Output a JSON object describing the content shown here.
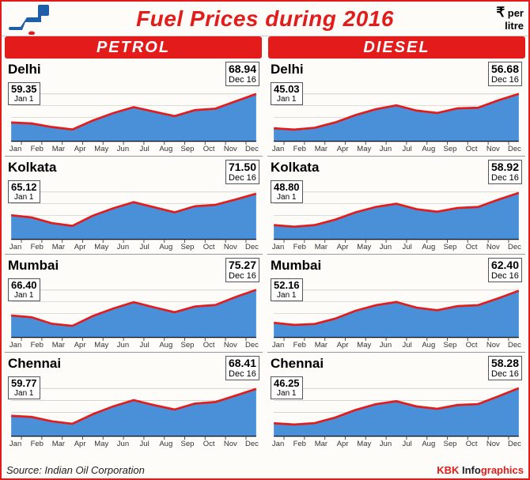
{
  "title": "Fuel Prices during 2016",
  "unit_symbol": "₹",
  "unit_text": "per litre",
  "source": "Source: Indian Oil Corporation",
  "brand_a": "KBK",
  "brand_b": " Info",
  "brand_c": "graphics",
  "columns": [
    {
      "label": "PETROL"
    },
    {
      "label": "DIESEL"
    }
  ],
  "months": [
    "Jan",
    "Feb",
    "Mar",
    "Apr",
    "May",
    "Jun",
    "Jul",
    "Aug",
    "Sep",
    "Oct",
    "Nov",
    "Dec"
  ],
  "colors": {
    "accent": "#e31b1b",
    "fill": "#4a90d9",
    "line": "#e31b1b",
    "grid": "#bbb",
    "bg": "#fdfcf9"
  },
  "chart_style": {
    "line_width": 2.5,
    "ymin_pad": 4,
    "ymax_pad": 4
  },
  "start_date": "Jan 1",
  "end_date": "Dec 16",
  "charts": [
    [
      {
        "city": "Delhi",
        "start": 59.35,
        "end": 68.94,
        "series": [
          59.35,
          59.0,
          57.8,
          57.0,
          60.0,
          62.5,
          64.5,
          63.0,
          61.5,
          63.5,
          64.0,
          66.5,
          68.94
        ]
      },
      {
        "city": "Kolkata",
        "start": 65.12,
        "end": 71.5,
        "series": [
          65.12,
          64.5,
          62.8,
          62.0,
          65.0,
          67.2,
          69.0,
          67.5,
          66.0,
          67.8,
          68.2,
          69.8,
          71.5
        ]
      },
      {
        "city": "Mumbai",
        "start": 66.4,
        "end": 75.27,
        "series": [
          66.4,
          65.8,
          63.5,
          62.8,
          66.2,
          68.8,
          71.0,
          69.2,
          67.5,
          69.5,
          70.0,
          72.8,
          75.27
        ]
      },
      {
        "city": "Chennai",
        "start": 59.77,
        "end": 68.41,
        "series": [
          59.77,
          59.4,
          58.0,
          57.2,
          60.3,
          62.8,
          64.8,
          63.2,
          61.8,
          63.7,
          64.2,
          66.3,
          68.41
        ]
      }
    ],
    [
      {
        "city": "Delhi",
        "start": 45.03,
        "end": 56.68,
        "series": [
          45.03,
          44.6,
          45.2,
          47.0,
          49.5,
          51.5,
          52.8,
          51.0,
          50.2,
          51.8,
          52.0,
          54.5,
          56.68
        ]
      },
      {
        "city": "Kolkata",
        "start": 48.8,
        "end": 58.92,
        "series": [
          48.8,
          48.3,
          48.8,
          50.5,
          52.8,
          54.5,
          55.5,
          53.8,
          53.0,
          54.2,
          54.5,
          56.8,
          58.92
        ]
      },
      {
        "city": "Mumbai",
        "start": 52.16,
        "end": 62.4,
        "series": [
          52.16,
          51.5,
          51.8,
          53.5,
          56.0,
          57.8,
          58.8,
          57.0,
          56.2,
          57.5,
          57.8,
          60.0,
          62.4
        ]
      },
      {
        "city": "Chennai",
        "start": 46.25,
        "end": 58.28,
        "series": [
          46.25,
          45.8,
          46.3,
          48.2,
          50.8,
          52.8,
          53.8,
          52.0,
          51.2,
          52.5,
          52.8,
          55.5,
          58.28
        ]
      }
    ]
  ]
}
